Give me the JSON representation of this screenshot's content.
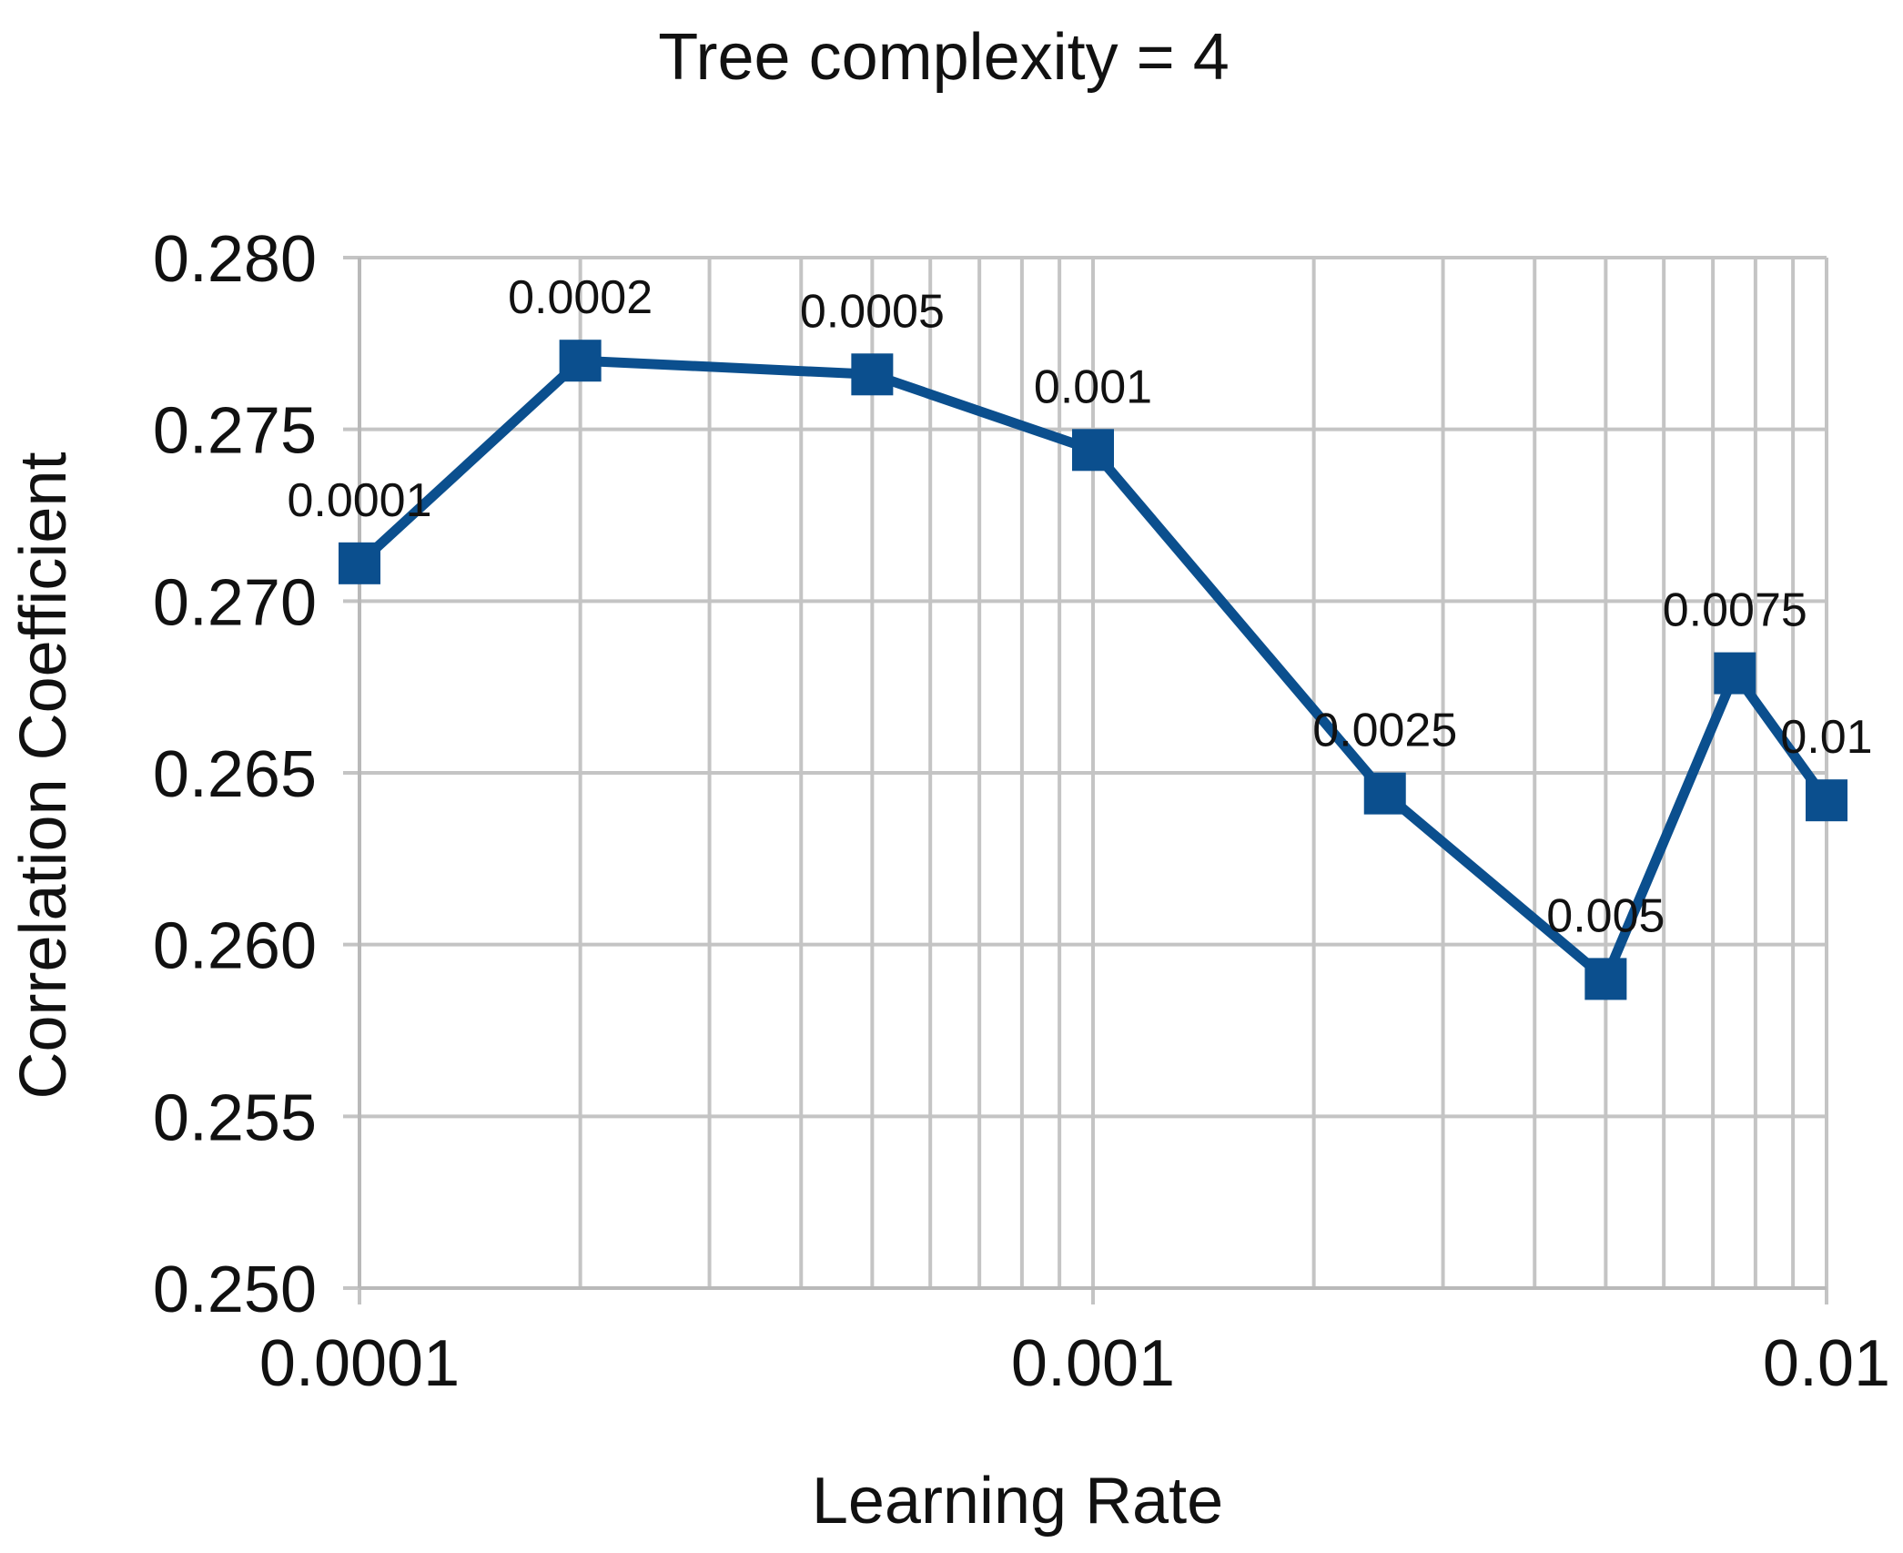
{
  "chart_data": {
    "type": "line",
    "title": "Tree complexity = 4",
    "xlabel": "Learning Rate",
    "ylabel": "Correlation Coefficient",
    "x_scale": "log",
    "xlim": [
      0.0001,
      0.01
    ],
    "ylim": [
      0.25,
      0.28
    ],
    "x_ticks": [
      0.0001,
      0.001,
      0.01
    ],
    "x_tick_labels": [
      "0.0001",
      "0.001",
      "0.01"
    ],
    "y_ticks": [
      0.25,
      0.255,
      0.26,
      0.265,
      0.27,
      0.275,
      0.28
    ],
    "y_tick_labels": [
      "0.250",
      "0.255",
      "0.260",
      "0.265",
      "0.270",
      "0.275",
      "0.280"
    ],
    "grid": true,
    "legend": "none",
    "color": "#0b4f8e",
    "series": [
      {
        "x": [
          0.0001,
          0.0002,
          0.0005,
          0.001,
          0.0025,
          0.005,
          0.0075,
          0.01
        ],
        "values": [
          0.2711,
          0.277,
          0.2766,
          0.2744,
          0.2644,
          0.259,
          0.2679,
          0.2642
        ],
        "point_labels": [
          "0.0001",
          "0.0002",
          "0.0005",
          "0.001",
          "0.0025",
          "0.005",
          "0.0075",
          "0.01"
        ]
      }
    ]
  }
}
